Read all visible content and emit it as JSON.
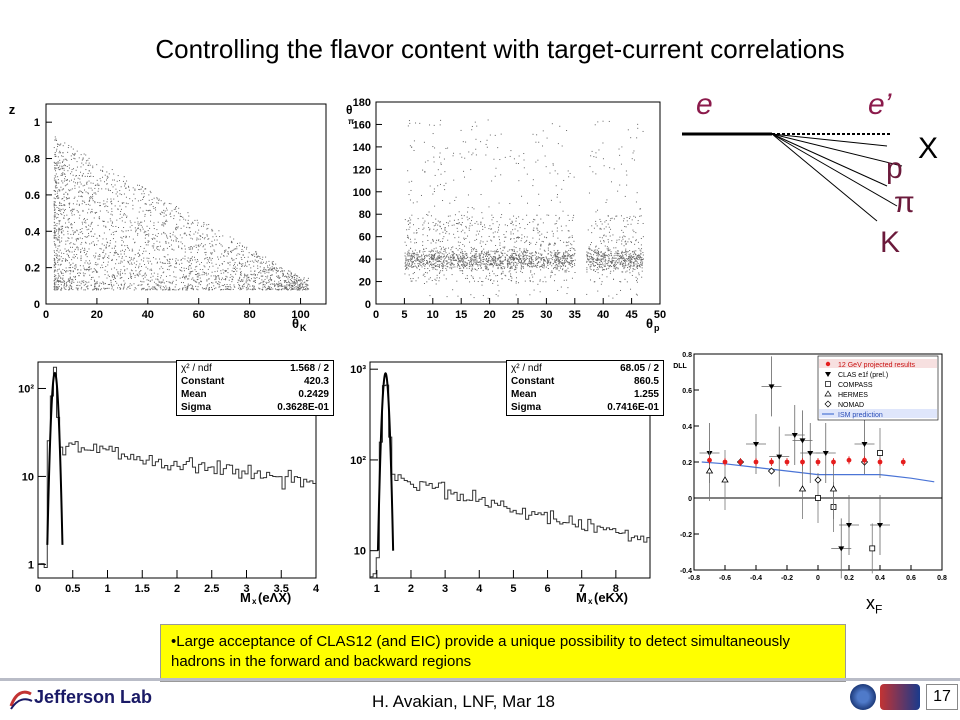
{
  "slide": {
    "title": "Controlling the flavor content with target-current correlations",
    "bullet": "•Large acceptance of CLAS12 (and EIC) provide a unique possibility to detect simultaneously hadrons in the forward and backward regions",
    "footer": "H. Avakian,  LNF,  Mar 18",
    "page_number": "17",
    "logo_text": "Jefferson Lab"
  },
  "diagram": {
    "labels": [
      "e",
      "e’",
      "X",
      "p",
      "π",
      "K"
    ],
    "colors": {
      "incoming": "#8b1a4b",
      "hadrons": "#6b1a3b",
      "x": "#000000"
    }
  },
  "colors": {
    "accent": "#ffff00",
    "data_points": "#555555",
    "fit_line": "#000000",
    "ism": "#4a74d6",
    "clas12": "#e51d1d"
  },
  "chart_data": [
    {
      "type": "scatter",
      "title": "",
      "xlabel": "θK",
      "ylabel": "z",
      "xlim": [
        0,
        110
      ],
      "ylim": [
        0,
        1.1
      ],
      "x_ticks": [
        "0",
        "20",
        "40",
        "60",
        "80",
        "100"
      ],
      "y_ticks": [
        "0",
        "0.2",
        "0.4",
        "0.6",
        "0.8",
        "1"
      ],
      "density": "dense gray points, high at low θK and low z"
    },
    {
      "type": "scatter",
      "title": "",
      "xlabel": "θp",
      "ylabel": "θπ",
      "xlim": [
        0,
        50
      ],
      "ylim": [
        0,
        180
      ],
      "x_ticks": [
        "0",
        "5",
        "10",
        "15",
        "20",
        "25",
        "30",
        "35",
        "40",
        "45",
        "50"
      ],
      "y_ticks": [
        "0",
        "20",
        "40",
        "60",
        "80",
        "100",
        "120",
        "140",
        "160",
        "180"
      ],
      "density": "band concentrated near θπ = 40"
    },
    {
      "type": "line",
      "xlabel": "M²x(eΛX)",
      "ylabel": "",
      "xlim": [
        0,
        4
      ],
      "ylim_log": [
        0.7,
        200
      ],
      "log_y": true,
      "x_ticks": [
        "0",
        "0.5",
        "1",
        "1.5",
        "2",
        "2.5",
        "3",
        "3.5",
        "4"
      ],
      "y_ticks": [
        "1",
        "10",
        "10²"
      ],
      "stats": {
        "chi2_label": "χ² / ndf",
        "chi2": "1.568",
        "ndf": "2",
        "constant_label": "Constant",
        "constant": "420.3",
        "mean_label": "Mean",
        "mean": "0.2429",
        "sigma_label": "Sigma",
        "sigma": "0.3628E-01"
      },
      "peak": {
        "x": 0.24,
        "y": 150
      }
    },
    {
      "type": "line",
      "xlabel": "M²x(eKX)",
      "ylabel": "",
      "xlim": [
        0.8,
        9
      ],
      "ylim_log": [
        5,
        1200
      ],
      "log_y": true,
      "x_ticks": [
        "1",
        "2",
        "3",
        "4",
        "5",
        "6",
        "7",
        "8"
      ],
      "y_ticks": [
        "10",
        "10²",
        "10³"
      ],
      "stats": {
        "chi2_label": "χ² / ndf",
        "chi2": "68.05",
        "ndf": "2",
        "constant_label": "Constant",
        "constant": "860.5",
        "mean_label": "Mean",
        "mean": "1.255",
        "sigma_label": "Sigma",
        "sigma": "0.7416E-01"
      },
      "peak": {
        "x": 1.25,
        "y": 900
      }
    },
    {
      "type": "scatter",
      "xlabel": "xF",
      "ylabel": "DLL",
      "xlim": [
        -0.8,
        0.8
      ],
      "ylim": [
        -0.4,
        0.8
      ],
      "x_ticks": [
        "-0.8",
        "-0.6",
        "-0.4",
        "-0.2",
        "0",
        "0.2",
        "0.4",
        "0.6",
        "0.8"
      ],
      "y_ticks": [
        "-0.4",
        "-0.2",
        "0",
        "0.2",
        "0.4",
        "0.6",
        "0.8"
      ],
      "legend_position": "top-right",
      "legend": [
        "12 GeV projected results",
        "CLAS e1f (prel.)",
        "COMPASS",
        "HERMES",
        "NOMAD",
        "ISM prediction"
      ],
      "series": [
        {
          "name": "12 GeV projected results",
          "x": [
            -0.7,
            -0.6,
            -0.5,
            -0.4,
            -0.3,
            -0.2,
            -0.1,
            0.0,
            0.1,
            0.2,
            0.3,
            0.4,
            0.55
          ],
          "y": [
            0.21,
            0.2,
            0.2,
            0.2,
            0.2,
            0.2,
            0.2,
            0.2,
            0.2,
            0.21,
            0.21,
            0.2,
            0.2
          ]
        },
        {
          "name": "CLAS e1f (prel.)",
          "x": [
            -0.7,
            -0.4,
            -0.3,
            -0.25,
            -0.15,
            -0.1,
            -0.05,
            0.05,
            0.15,
            0.2,
            0.3,
            0.4
          ],
          "y": [
            0.25,
            0.3,
            0.62,
            0.23,
            0.35,
            0.32,
            0.25,
            0.25,
            -0.28,
            -0.15,
            0.3,
            -0.15
          ]
        },
        {
          "name": "COMPASS",
          "x": [
            0.0,
            0.1,
            0.35,
            0.4
          ],
          "y": [
            0.0,
            -0.05,
            -0.28,
            0.25
          ]
        },
        {
          "name": "HERMES",
          "x": [
            -0.7,
            -0.6,
            -0.1,
            0.1
          ],
          "y": [
            0.15,
            0.1,
            0.05,
            0.05
          ]
        },
        {
          "name": "NOMAD",
          "x": [
            -0.5,
            -0.3,
            0.0,
            0.3
          ],
          "y": [
            0.2,
            0.15,
            0.1,
            0.2
          ]
        },
        {
          "name": "ISM prediction",
          "x": [
            -0.75,
            -0.6,
            -0.4,
            -0.2,
            0.0,
            0.2,
            0.4,
            0.6,
            0.75
          ],
          "y": [
            0.2,
            0.19,
            0.17,
            0.15,
            0.13,
            0.13,
            0.13,
            0.11,
            0.09
          ]
        }
      ]
    }
  ]
}
